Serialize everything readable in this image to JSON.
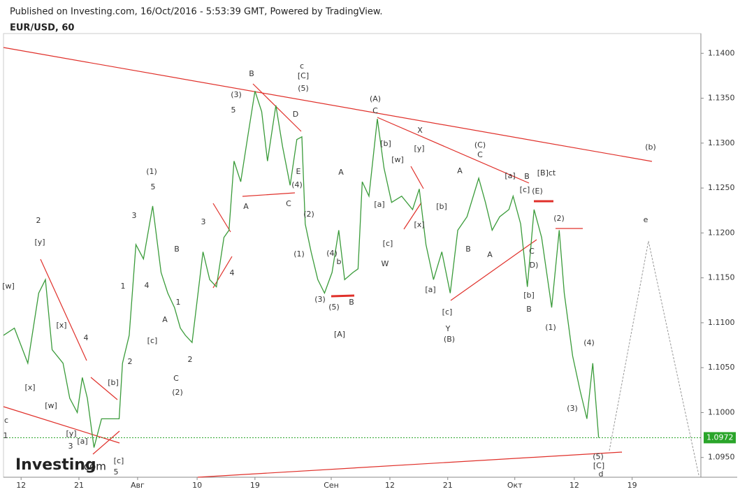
{
  "header": {
    "published": "Published on Investing.com, 16/Oct/2016 - 5:53:39 GMT, Powered by TradingView."
  },
  "logo": {
    "name": "Investing",
    "suffix": ".com"
  },
  "chart_data": {
    "type": "line",
    "title": "EUR/USD, 60",
    "xlim": [
      0,
      83.2
    ],
    "ylim": [
      1.0928,
      1.1422
    ],
    "xticks": [
      {
        "value": 2.1,
        "label": "12"
      },
      {
        "value": 9.0,
        "label": "21"
      },
      {
        "value": 16.0,
        "label": "Авг"
      },
      {
        "value": 23.1,
        "label": "10"
      },
      {
        "value": 30.0,
        "label": "19"
      },
      {
        "value": 39.1,
        "label": "Сен"
      },
      {
        "value": 46.1,
        "label": "12"
      },
      {
        "value": 53.0,
        "label": "21"
      },
      {
        "value": 61.0,
        "label": "Окт"
      },
      {
        "value": 68.1,
        "label": "12"
      },
      {
        "value": 75.0,
        "label": "19"
      }
    ],
    "yticks": [
      {
        "value": 1.095,
        "label": "1.0950"
      },
      {
        "value": 1.1,
        "label": "1.1000"
      },
      {
        "value": 1.105,
        "label": "1.1050"
      },
      {
        "value": 1.11,
        "label": "1.1100"
      },
      {
        "value": 1.115,
        "label": "1.1150"
      },
      {
        "value": 1.12,
        "label": "1.1200"
      },
      {
        "value": 1.125,
        "label": "1.1250"
      },
      {
        "value": 1.13,
        "label": "1.1300"
      },
      {
        "value": 1.135,
        "label": "1.1350"
      },
      {
        "value": 1.14,
        "label": "1.1400"
      }
    ],
    "series": [
      {
        "name": "EUR/USD",
        "color": "#3a9b3a",
        "x": [
          0,
          1.3,
          2.9,
          4.2,
          5,
          5.8,
          7.1,
          7.9,
          8.8,
          9.4,
          10,
          10.8,
          11.7,
          12.9,
          13.8,
          14.2,
          15,
          15.8,
          16.7,
          17.8,
          18.8,
          19.6,
          20.4,
          21.1,
          21.7,
          22.5,
          22.9,
          23.8,
          24.6,
          25.4,
          26.3,
          26.9,
          27.5,
          28.3,
          29.2,
          30,
          30.8,
          31.5,
          32.5,
          33.3,
          34.2,
          35,
          35.6,
          36,
          36.7,
          37.5,
          38.3,
          39.2,
          40,
          40.7,
          41.7,
          42.3,
          42.8,
          43.6,
          44.6,
          45.4,
          46.3,
          47.5,
          48.8,
          49.6,
          50.4,
          51.3,
          52.3,
          53.3,
          54.2,
          55.3,
          56.7,
          57.5,
          58.3,
          59.2,
          60.3,
          60.8,
          61.7,
          62.5,
          63.3,
          64.2,
          65.4,
          66.3,
          66.9,
          67.9,
          68.8,
          69.6,
          70.3,
          71
        ],
        "values": [
          1.1086,
          1.1094,
          1.1055,
          1.1133,
          1.1148,
          1.107,
          1.1055,
          1.1016,
          1.1,
          1.1039,
          1.1016,
          1.0961,
          1.0993,
          1.0993,
          1.0993,
          1.1055,
          1.1086,
          1.1187,
          1.1171,
          1.123,
          1.1156,
          1.1133,
          1.1117,
          1.1094,
          1.1086,
          1.1078,
          1.1109,
          1.1179,
          1.1148,
          1.114,
          1.1195,
          1.1203,
          1.128,
          1.1257,
          1.1311,
          1.1358,
          1.1335,
          1.128,
          1.1342,
          1.1296,
          1.1253,
          1.1304,
          1.1307,
          1.121,
          1.1179,
          1.1148,
          1.1133,
          1.1156,
          1.1203,
          1.1148,
          1.1156,
          1.116,
          1.1257,
          1.1241,
          1.1327,
          1.1272,
          1.1234,
          1.1241,
          1.1226,
          1.1249,
          1.1187,
          1.1148,
          1.1179,
          1.1133,
          1.1203,
          1.1218,
          1.1261,
          1.1234,
          1.1203,
          1.1218,
          1.1226,
          1.1241,
          1.121,
          1.114,
          1.1226,
          1.1195,
          1.1117,
          1.1203,
          1.1133,
          1.1063,
          1.1024,
          1.0993,
          1.1055,
          1.0972
        ]
      }
    ],
    "last_price": 1.0972,
    "annotations": [
      "2",
      "[y]",
      "[w]",
      "[x]",
      "4",
      "[x]",
      "[w]",
      "[y]",
      "[a]",
      "3",
      "[b]",
      "[c]",
      "5",
      "c",
      "1",
      "1",
      "2",
      "3",
      "(1)",
      "5",
      "4",
      "B",
      "A",
      "1",
      "[c]",
      "2",
      "C",
      "(2)",
      "3",
      "4",
      "(3)",
      "5",
      "B",
      "A",
      "C",
      "D",
      "E",
      "(4)",
      "c",
      "[C]",
      "(5)",
      "(2)",
      "(1)",
      "A",
      "(4)",
      "b",
      "(3)",
      "(5)",
      "B",
      "[A]",
      "(A)",
      "C",
      "[b]",
      "[w]",
      "[y]",
      "X",
      "[a]",
      "[c]",
      "W",
      "[x]",
      "[b]",
      "[a]",
      "[c]",
      "Y",
      "(B)",
      "A",
      "B",
      "A",
      "(C)",
      "C",
      "[a]",
      "B",
      "[B]ct",
      "[c]",
      "(E)",
      "C",
      "D)",
      "[b]",
      "B",
      "(2)",
      "(1)",
      "(4)",
      "(3)",
      "(5)",
      "[C]",
      "d",
      "(b)",
      "e"
    ]
  }
}
